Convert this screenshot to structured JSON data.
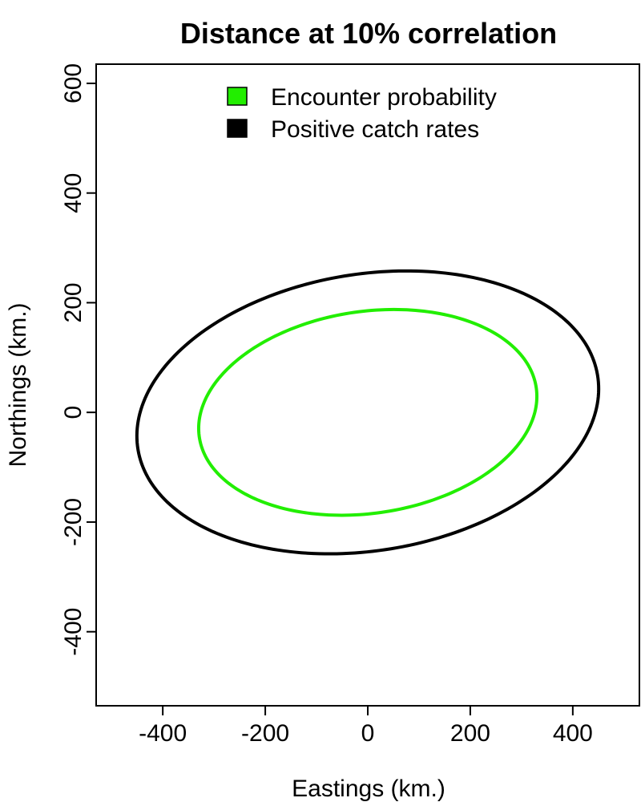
{
  "chart_data": {
    "type": "line",
    "title": "Distance at 10% correlation",
    "xlabel": "Eastings (km.)",
    "ylabel": "Northings (km.)",
    "xlim": [
      -530,
      530
    ],
    "ylim": [
      -535,
      635
    ],
    "x_ticks": [
      -400,
      -200,
      0,
      200,
      400
    ],
    "y_ticks": [
      -400,
      -200,
      0,
      200,
      400,
      600
    ],
    "grid": false,
    "legend_position": "top-center",
    "series": [
      {
        "name": "Encounter probability",
        "color": "#22ee00",
        "shape": "ellipse",
        "center": [
          0,
          0
        ],
        "rightmost_point": [
          329,
          15
        ],
        "topmost_point": [
          25,
          187
        ]
      },
      {
        "name": "Positive catch rates",
        "color": "#000000",
        "shape": "ellipse",
        "center": [
          0,
          0
        ],
        "rightmost_point": [
          449,
          22
        ],
        "topmost_point": [
          37,
          257
        ]
      }
    ]
  }
}
